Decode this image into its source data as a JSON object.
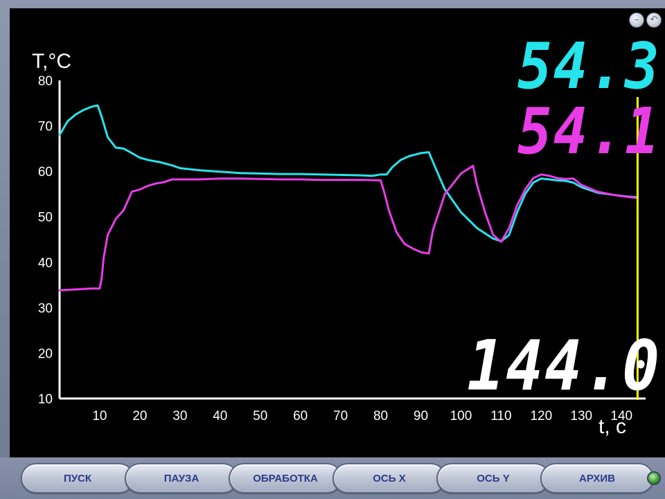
{
  "window": {
    "minimize_icon": "minimize-icon",
    "minimize_glyph": "–",
    "back_icon": "back-arrow-icon",
    "back_glyph": "↶"
  },
  "readouts": {
    "cyan_value": "54.3",
    "magenta_value": "54.1",
    "time_value": "144.0",
    "cyan_color": "#26e4ec",
    "magenta_color": "#e83de6"
  },
  "chart_data": {
    "type": "line",
    "ylabel": "T,°C",
    "xlabel": "t, c",
    "xlim": [
      0,
      146
    ],
    "ylim": [
      10,
      80
    ],
    "x_ticks": [
      10,
      20,
      30,
      40,
      50,
      60,
      70,
      80,
      90,
      100,
      110,
      120,
      130,
      140
    ],
    "y_ticks": [
      10,
      20,
      30,
      40,
      50,
      60,
      70,
      80
    ],
    "cursor_x": 144,
    "cursor_color": "#ffff00",
    "grid": false,
    "series": [
      {
        "color": "#26e4ec",
        "x": [
          0,
          2,
          4,
          6,
          8,
          9.5,
          10.5,
          12,
          14,
          16,
          18,
          20,
          22,
          25,
          28,
          30,
          35,
          40,
          45,
          50,
          55,
          60,
          65,
          70,
          75,
          78,
          80,
          81.5,
          83,
          85,
          87,
          90,
          92,
          94,
          96,
          100,
          104,
          108,
          110,
          112,
          114,
          116,
          118,
          120,
          122,
          124,
          126,
          128,
          130,
          134,
          138,
          142,
          144
        ],
        "values": [
          68,
          71,
          72.5,
          73.5,
          74.2,
          74.5,
          72,
          67.5,
          65.2,
          65,
          64,
          63,
          62.5,
          62,
          61.3,
          60.7,
          60.2,
          59.9,
          59.6,
          59.5,
          59.4,
          59.4,
          59.3,
          59.2,
          59.1,
          59,
          59.3,
          59.3,
          61,
          62.5,
          63.3,
          64,
          64.2,
          60,
          56,
          51,
          47.5,
          45.2,
          44.6,
          46,
          51,
          55,
          57.5,
          58.4,
          58.2,
          58,
          57.9,
          57.5,
          56.5,
          55.3,
          54.8,
          54.4,
          54.3
        ]
      },
      {
        "color": "#e83de6",
        "x": [
          0,
          4,
          8,
          10,
          10.5,
          11,
          12,
          14,
          16,
          18,
          20,
          22,
          24,
          26,
          28,
          30,
          35,
          40,
          45,
          50,
          55,
          60,
          65,
          70,
          75,
          80,
          81,
          82,
          84,
          86,
          88,
          90,
          92,
          93,
          96,
          100,
          103,
          104,
          106,
          108,
          110,
          112,
          114,
          116,
          118,
          120,
          122,
          124,
          126,
          128,
          130,
          134,
          138,
          142,
          144
        ],
        "values": [
          33.8,
          34,
          34.2,
          34.2,
          36.5,
          41,
          46,
          49.5,
          51.5,
          55.5,
          56,
          56.8,
          57.3,
          57.6,
          58.2,
          58.2,
          58.2,
          58.4,
          58.4,
          58.3,
          58.2,
          58.2,
          58.1,
          58.1,
          58.1,
          58,
          55,
          51.5,
          46.5,
          44,
          43,
          42.2,
          41.9,
          47,
          55,
          59.5,
          61.2,
          57,
          51,
          46,
          44.5,
          47.5,
          52.5,
          56,
          58.5,
          59.3,
          59,
          58.5,
          58.3,
          58.4,
          57,
          55.5,
          54.8,
          54.3,
          54.1
        ]
      }
    ]
  },
  "buttons": {
    "start": "ПУСК",
    "pause": "ПАУЗА",
    "processing": "ОБРАБОТКА",
    "axis_x": "ОСЬ X",
    "axis_y": "ОСЬ Y",
    "archive": "АРХИВ"
  },
  "status_led": {
    "color": "#3fa23a",
    "icon": "status-led-icon"
  }
}
